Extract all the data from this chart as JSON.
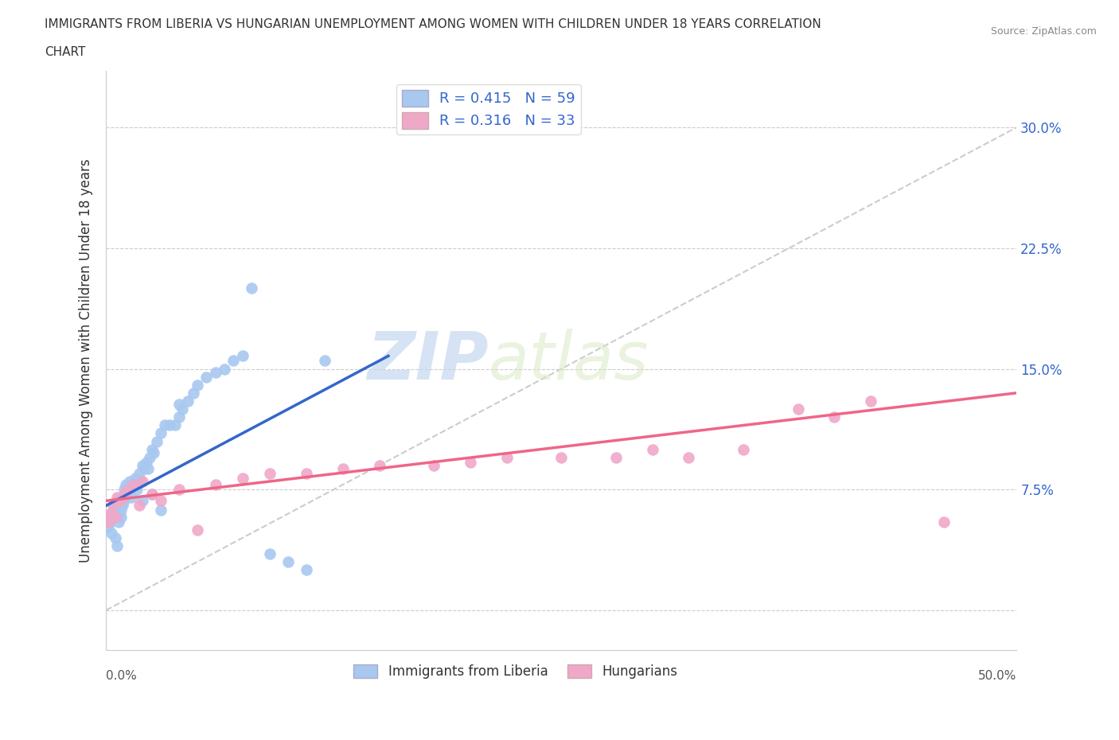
{
  "title_line1": "IMMIGRANTS FROM LIBERIA VS HUNGARIAN UNEMPLOYMENT AMONG WOMEN WITH CHILDREN UNDER 18 YEARS CORRELATION",
  "title_line2": "CHART",
  "source": "Source: ZipAtlas.com",
  "ylabel": "Unemployment Among Women with Children Under 18 years",
  "xlim": [
    0.0,
    0.5
  ],
  "ylim": [
    -0.025,
    0.335
  ],
  "ytick_positions": [
    0.0,
    0.075,
    0.15,
    0.225,
    0.3
  ],
  "ytick_labels": [
    "",
    "7.5%",
    "15.0%",
    "22.5%",
    "30.0%"
  ],
  "xtick_positions": [
    0.0,
    0.0625,
    0.125,
    0.1875,
    0.25,
    0.3125,
    0.375,
    0.4375,
    0.5
  ],
  "R_liberia": 0.415,
  "N_liberia": 59,
  "R_hungarian": 0.316,
  "N_hungarian": 33,
  "color_liberia": "#a8c8f0",
  "color_hungarian": "#f0a8c8",
  "line_color_liberia": "#3366cc",
  "line_color_hungarian": "#ee6688",
  "line_color_diag": "#bbbbbb",
  "watermark_zip": "ZIP",
  "watermark_atlas": "atlas",
  "liberia_x": [
    0.001,
    0.002,
    0.003,
    0.003,
    0.004,
    0.004,
    0.005,
    0.005,
    0.006,
    0.006,
    0.007,
    0.007,
    0.008,
    0.008,
    0.009,
    0.009,
    0.01,
    0.01,
    0.011,
    0.011,
    0.012,
    0.013,
    0.014,
    0.015,
    0.016,
    0.017,
    0.018,
    0.019,
    0.02,
    0.021,
    0.022,
    0.023,
    0.024,
    0.025,
    0.026,
    0.028,
    0.03,
    0.032,
    0.035,
    0.038,
    0.04,
    0.042,
    0.045,
    0.048,
    0.05,
    0.055,
    0.06,
    0.065,
    0.07,
    0.075,
    0.08,
    0.09,
    0.1,
    0.11,
    0.12,
    0.02,
    0.025,
    0.03,
    0.04
  ],
  "liberia_y": [
    0.052,
    0.055,
    0.06,
    0.048,
    0.058,
    0.062,
    0.065,
    0.045,
    0.068,
    0.04,
    0.06,
    0.055,
    0.062,
    0.058,
    0.065,
    0.07,
    0.068,
    0.075,
    0.072,
    0.078,
    0.075,
    0.08,
    0.07,
    0.078,
    0.082,
    0.075,
    0.085,
    0.08,
    0.09,
    0.088,
    0.092,
    0.088,
    0.095,
    0.1,
    0.098,
    0.105,
    0.11,
    0.115,
    0.115,
    0.115,
    0.12,
    0.125,
    0.13,
    0.135,
    0.14,
    0.145,
    0.148,
    0.15,
    0.155,
    0.158,
    0.2,
    0.035,
    0.03,
    0.025,
    0.155,
    0.068,
    0.072,
    0.062,
    0.128
  ],
  "hungarian_x": [
    0.001,
    0.002,
    0.004,
    0.005,
    0.006,
    0.008,
    0.01,
    0.012,
    0.015,
    0.018,
    0.02,
    0.025,
    0.03,
    0.04,
    0.05,
    0.06,
    0.075,
    0.09,
    0.11,
    0.13,
    0.15,
    0.18,
    0.2,
    0.22,
    0.25,
    0.28,
    0.3,
    0.32,
    0.35,
    0.38,
    0.4,
    0.42,
    0.46
  ],
  "hungarian_y": [
    0.055,
    0.06,
    0.065,
    0.058,
    0.07,
    0.068,
    0.072,
    0.075,
    0.078,
    0.065,
    0.08,
    0.072,
    0.068,
    0.075,
    0.05,
    0.078,
    0.082,
    0.085,
    0.085,
    0.088,
    0.09,
    0.09,
    0.092,
    0.095,
    0.095,
    0.095,
    0.1,
    0.095,
    0.1,
    0.125,
    0.12,
    0.13,
    0.055
  ]
}
